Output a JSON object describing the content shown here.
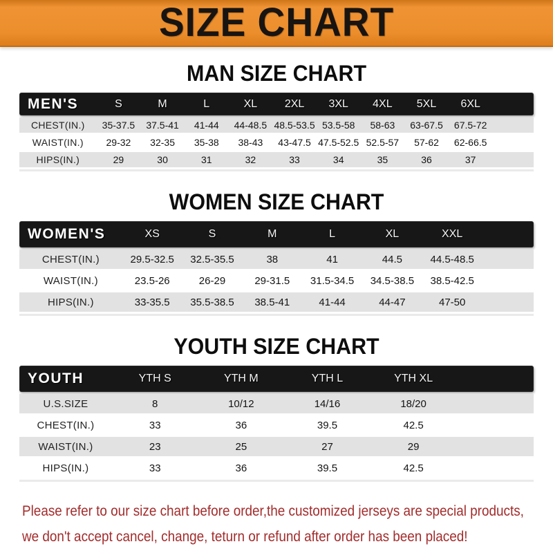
{
  "banner": {
    "title": "SIZE CHART"
  },
  "colors": {
    "banner_orange": "#EC8E2C",
    "banner_text": "#181411",
    "header_bar_black": "#171717",
    "header_bar_text": "#FFFFFF",
    "row_stripe_gray": "#E2E2E2",
    "row_white": "#FFFFFF",
    "footer_red": "#A32C2C"
  },
  "sections": [
    {
      "title": "MAN SIZE CHART",
      "header_label": "MEN'S",
      "columns": [
        "S",
        "M",
        "L",
        "XL",
        "2XL",
        "3XL",
        "4XL",
        "5XL",
        "6XL"
      ],
      "rows": [
        {
          "label": "CHEST(IN.)",
          "values": [
            "35-37.5",
            "37.5-41",
            "41-44",
            "44-48.5",
            "48.5-53.5",
            "53.5-58",
            "58-63",
            "63-67.5",
            "67.5-72"
          ]
        },
        {
          "label": "WAIST(IN.)",
          "values": [
            "29-32",
            "32-35",
            "35-38",
            "38-43",
            "43-47.5",
            "47.5-52.5",
            "52.5-57",
            "57-62",
            "62-66.5"
          ]
        },
        {
          "label": "HIPS(IN.)",
          "values": [
            "29",
            "30",
            "31",
            "32",
            "33",
            "34",
            "35",
            "36",
            "37"
          ]
        }
      ]
    },
    {
      "title": "WOMEN SIZE CHART",
      "header_label": "WOMEN'S",
      "columns": [
        "XS",
        "S",
        "M",
        "L",
        "XL",
        "XXL"
      ],
      "rows": [
        {
          "label": "CHEST(IN.)",
          "values": [
            "29.5-32.5",
            "32.5-35.5",
            "38",
            "41",
            "44.5",
            "44.5-48.5"
          ]
        },
        {
          "label": "WAIST(IN.)",
          "values": [
            "23.5-26",
            "26-29",
            "29-31.5",
            "31.5-34.5",
            "34.5-38.5",
            "38.5-42.5"
          ]
        },
        {
          "label": "HIPS(IN.)",
          "values": [
            "33-35.5",
            "35.5-38.5",
            "38.5-41",
            "41-44",
            "44-47",
            "47-50"
          ]
        }
      ]
    },
    {
      "title": "YOUTH SIZE CHART",
      "header_label": "YOUTH",
      "columns": [
        "YTH S",
        "YTH M",
        "YTH L",
        "YTH XL"
      ],
      "rows": [
        {
          "label": "U.S.SIZE",
          "values": [
            "8",
            "10/12",
            "14/16",
            "18/20"
          ]
        },
        {
          "label": "CHEST(IN.)",
          "values": [
            "33",
            "36",
            "39.5",
            "42.5"
          ]
        },
        {
          "label": "WAIST(IN.)",
          "values": [
            "23",
            "25",
            "27",
            "29"
          ]
        },
        {
          "label": "HIPS(IN.)",
          "values": [
            "33",
            "36",
            "39.5",
            "42.5"
          ]
        }
      ]
    }
  ],
  "footer": {
    "line1": "Please refer to our size chart before order,the customized jerseys are special products,",
    "line2": "we don't accept cancel, change, teturn or refund after order has been placed!"
  }
}
